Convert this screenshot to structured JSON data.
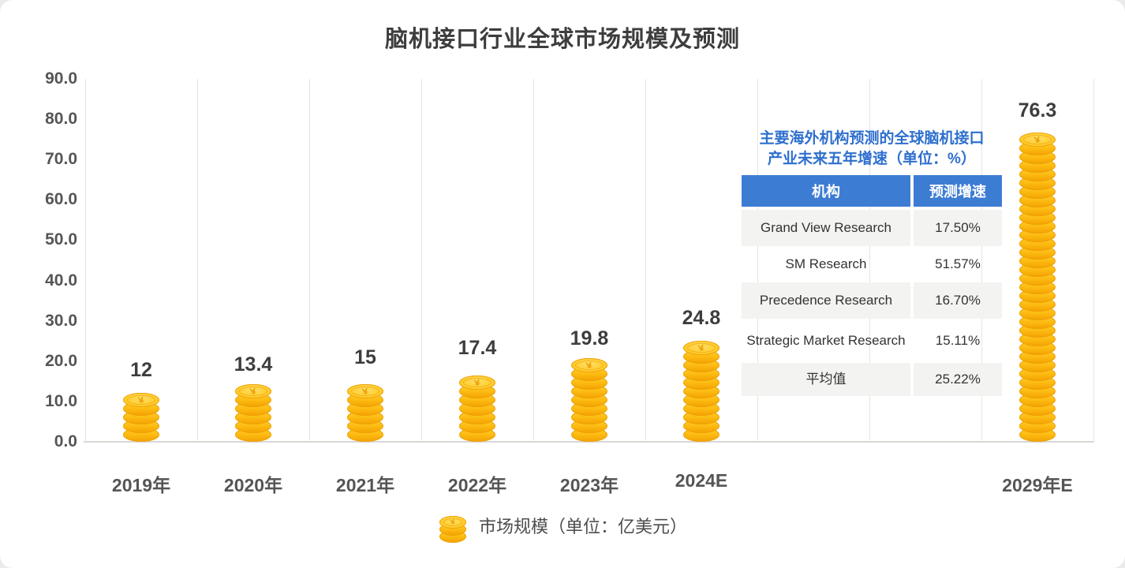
{
  "chart_data": {
    "type": "bar",
    "title": "脑机接口行业全球市场规模及预测",
    "categories": [
      "2019年",
      "2020年",
      "2021年",
      "2022年",
      "2023年",
      "2024E",
      "2029年E"
    ],
    "values": [
      12,
      13.4,
      15,
      17.4,
      19.8,
      24.8,
      76.3
    ],
    "labels": [
      "12",
      "13.4",
      "15",
      "17.4",
      "19.8",
      "24.8",
      "76.3"
    ],
    "slots": [
      0,
      1,
      2,
      3,
      4,
      5,
      8
    ],
    "num_slots": 9,
    "xlabel": "",
    "ylabel": "",
    "ylim": [
      0,
      90
    ],
    "ytick_step": 10,
    "ytick_format": "one-decimal",
    "grid": "vertical-only",
    "legend": "市场规模（单位：亿美元）",
    "legend_position": "bottom-center",
    "bar_style": "gold-coin-stack",
    "currency_symbol_on_coin": "¥"
  },
  "inset_table": {
    "title_line1": "主要海外机构预测的全球脑机接口",
    "title_line2": "产业未来五年增速（单位：%）",
    "headers": [
      "机构",
      "预测增速"
    ],
    "rows": [
      {
        "org": "Grand View Research",
        "rate": "17.50%"
      },
      {
        "org": "SM Research",
        "rate": "51.57%"
      },
      {
        "org": "Precedence Research",
        "rate": "16.70%"
      },
      {
        "org": "Strategic Market Research",
        "rate": "15.11%"
      },
      {
        "org": "平均值",
        "rate": "25.22%"
      }
    ]
  },
  "colors": {
    "table_header_blue": "#3d7cd3",
    "table_title_blue": "#2e6fce",
    "row_alt_gray": "#f3f3f1",
    "coin_gold": "#fdbb12",
    "coin_shadow": "#f3a000",
    "coin_face": "#ffcd2e",
    "title_text": "#3d3d3d",
    "axis_text": "#555555",
    "gridline": "#e5e5e1"
  }
}
